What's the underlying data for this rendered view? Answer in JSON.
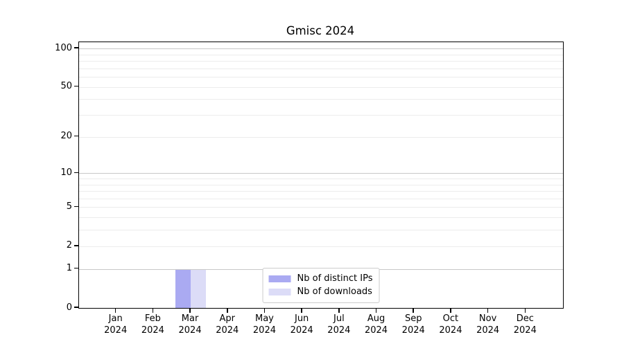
{
  "chart_data": {
    "type": "bar",
    "title": "Gmisc 2024",
    "categories": [
      "Jan",
      "Feb",
      "Mar",
      "Apr",
      "May",
      "Jun",
      "Jul",
      "Aug",
      "Sep",
      "Oct",
      "Nov",
      "Dec"
    ],
    "category_year": "2024",
    "series": [
      {
        "name": "Nb of distinct IPs",
        "color": "#aaaaf2",
        "values": [
          0,
          0,
          1,
          0,
          0,
          0,
          0,
          0,
          0,
          0,
          0,
          0
        ]
      },
      {
        "name": "Nb of downloads",
        "color": "#dcdcf7",
        "values": [
          0,
          0,
          1,
          0,
          0,
          0,
          0,
          0,
          0,
          0,
          0,
          0
        ]
      }
    ],
    "y_axis": {
      "scale": "log1p",
      "labeled_ticks": [
        0,
        1,
        2,
        5,
        10,
        20,
        50,
        100
      ],
      "major_gridlines": [
        1,
        10,
        100
      ],
      "minor_gridlines": [
        2,
        3,
        4,
        5,
        6,
        7,
        8,
        9,
        20,
        30,
        40,
        50,
        60,
        70,
        80,
        90
      ],
      "ylim": [
        0,
        112
      ]
    },
    "x_axis": {
      "tick_count": 12
    },
    "legend": {
      "position": "lower center"
    },
    "grid": true,
    "colors": {
      "major_grid": "#c8c8c8",
      "minor_grid": "#ececec",
      "spine": "#000000",
      "background": "#ffffff",
      "legend_border": "#cccccc"
    }
  }
}
